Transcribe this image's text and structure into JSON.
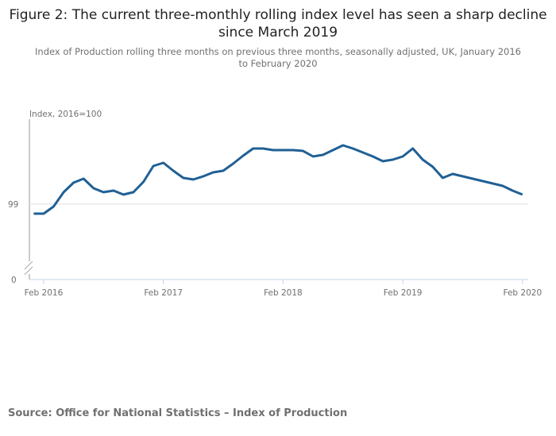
{
  "chart_data": {
    "type": "line",
    "title": "Figure 2: The current three-monthly rolling index level has seen a sharp decline since March 2019",
    "subtitle": "Index of Production rolling three months on previous three months, seasonally adjusted, UK, January 2016 to February 2020",
    "ylabel": "Index, 2016=100",
    "xlabel": "",
    "y_ticks": [
      "99",
      "0"
    ],
    "x_ticks": [
      "Feb 2016",
      "Feb 2017",
      "Feb 2018",
      "Feb 2019",
      "Feb 2020"
    ],
    "axis_break": true,
    "x_start": "Jan 2016",
    "x_end": "Feb 2020",
    "series": [
      {
        "name": "Index of Production",
        "color": "#206095",
        "values": [
          98.88,
          98.88,
          98.97,
          99.15,
          99.27,
          99.32,
          99.2,
          99.15,
          99.17,
          99.12,
          99.15,
          99.28,
          99.48,
          99.52,
          99.42,
          99.33,
          99.31,
          99.35,
          99.4,
          99.42,
          99.51,
          99.61,
          99.7,
          99.7,
          99.68,
          99.68,
          99.68,
          99.67,
          99.6,
          99.62,
          99.68,
          99.74,
          99.7,
          99.65,
          99.6,
          99.54,
          99.56,
          99.6,
          99.7,
          99.56,
          99.47,
          99.33,
          99.38,
          99.35,
          99.32,
          99.29,
          99.26,
          99.23,
          99.17,
          99.12
        ]
      }
    ],
    "grid": true,
    "legend": "none"
  },
  "source": "Source: Office for National Statistics – Index of Production"
}
